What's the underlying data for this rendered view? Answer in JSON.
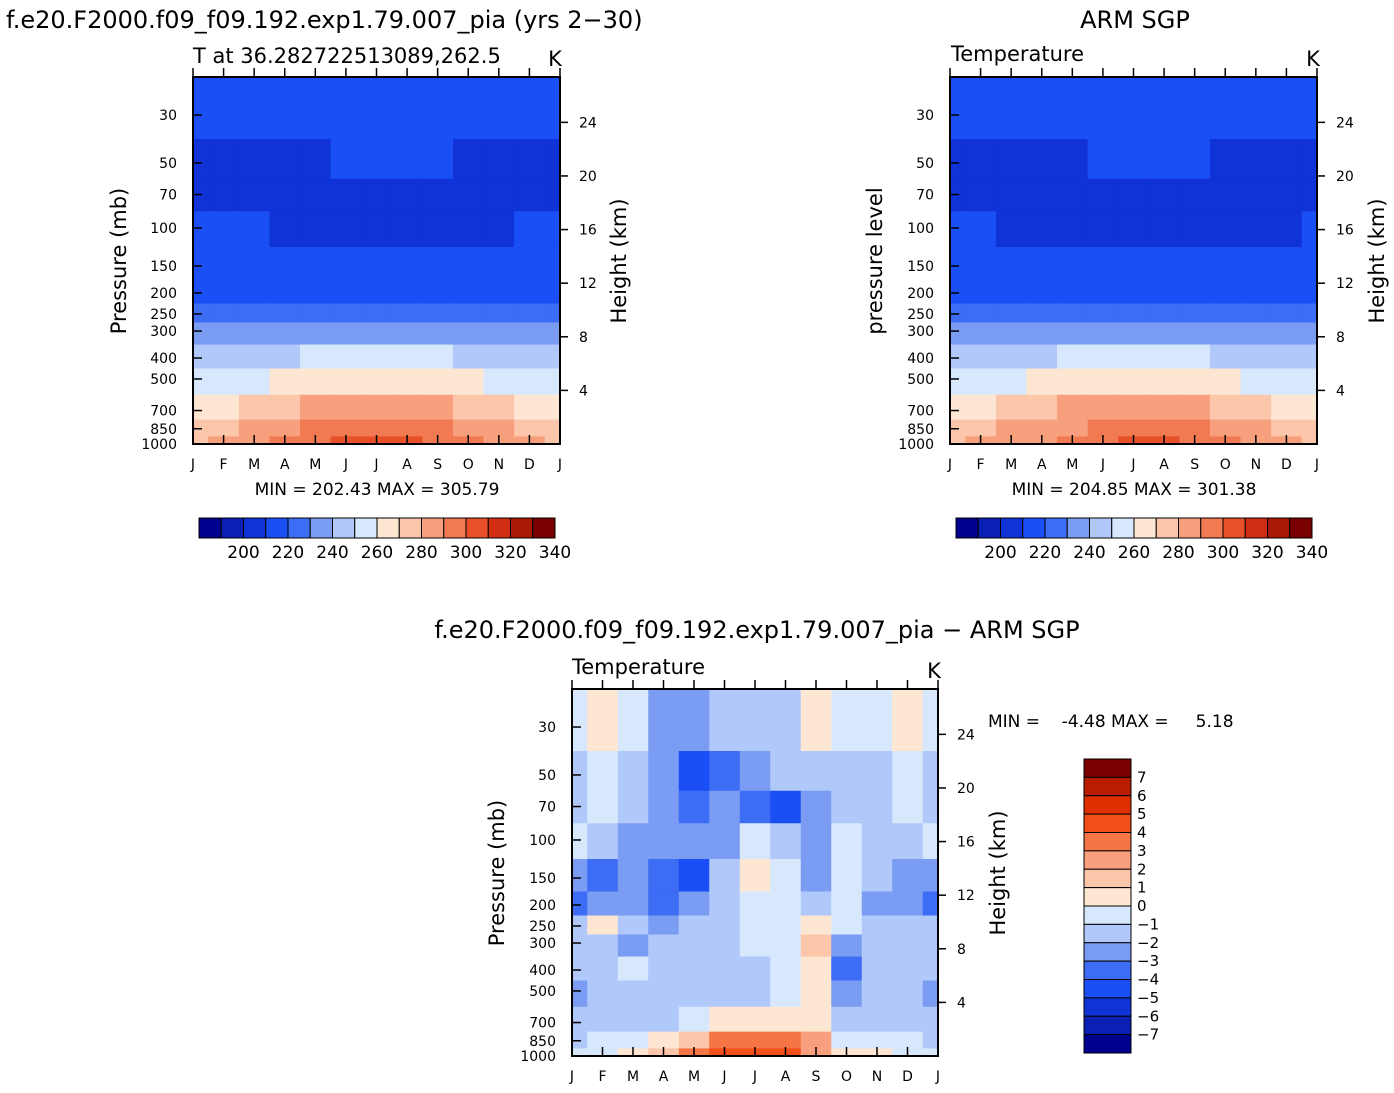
{
  "header": {
    "left_title": "f.e20.F2000.f09_f09.192.exp1.79.007_pia (yrs 2−30)",
    "right_title": "ARM SGP",
    "diff_title": "f.e20.F2000.f09_f09.192.exp1.79.007_pia − ARM SGP"
  },
  "panels": {
    "model": {
      "subtitle": "T at 36.282722513089,262.5",
      "units": "K",
      "ylabel": "Pressure (mb)",
      "y2label": "Height (km)",
      "stats": "MIN = 202.43 MAX = 305.79"
    },
    "obs": {
      "subtitle": "Temperature",
      "units": "K",
      "ylabel": "pressure level",
      "y2label": "Height (km)",
      "stats": "MIN = 204.85 MAX = 301.38"
    },
    "diff": {
      "subtitle": "Temperature",
      "units": "K",
      "ylabel": "Pressure (mb)",
      "y2label": "Height (km)",
      "stats": "MIN =    -4.48 MAX =     5.18"
    }
  },
  "chart_data": [
    {
      "type": "heatmap",
      "title": "T at 36.282722513089,262.5",
      "units": "K",
      "x": [
        "J",
        "F",
        "M",
        "A",
        "M",
        "J",
        "J",
        "A",
        "S",
        "O",
        "N",
        "D",
        "J"
      ],
      "y_pressure_mb": [
        30,
        50,
        70,
        100,
        150,
        200,
        250,
        300,
        400,
        500,
        700,
        850,
        1000
      ],
      "y2_height_km": [
        24,
        20,
        16,
        12,
        8,
        4
      ],
      "approx_temperature_k": [
        [
          213,
          213,
          213,
          214,
          215,
          217,
          219,
          219,
          218,
          216,
          214,
          213,
          213
        ],
        [
          208,
          208,
          208,
          208,
          209,
          211,
          212,
          212,
          211,
          209,
          208,
          208,
          208
        ],
        [
          207,
          207,
          207,
          207,
          205,
          206,
          206,
          206,
          206,
          206,
          207,
          207,
          207
        ],
        [
          212,
          211,
          210,
          208,
          205,
          205,
          205,
          205,
          205,
          205,
          207,
          210,
          212
        ],
        [
          215,
          214,
          213,
          212,
          210,
          210,
          210,
          210,
          210,
          210,
          211,
          213,
          215
        ],
        [
          219,
          218,
          217,
          216,
          215,
          215,
          215,
          215,
          215,
          215,
          216,
          217,
          219
        ],
        [
          224,
          223,
          223,
          222,
          222,
          222,
          222,
          222,
          222,
          222,
          223,
          223,
          224
        ],
        [
          230,
          230,
          231,
          232,
          234,
          235,
          236,
          236,
          235,
          233,
          231,
          230,
          230
        ],
        [
          242,
          243,
          245,
          247,
          250,
          252,
          254,
          254,
          252,
          249,
          246,
          243,
          242
        ],
        [
          254,
          255,
          257,
          260,
          263,
          266,
          268,
          268,
          265,
          262,
          258,
          255,
          254
        ],
        [
          268,
          269,
          272,
          276,
          280,
          284,
          286,
          286,
          283,
          278,
          273,
          269,
          268
        ],
        [
          276,
          277,
          280,
          285,
          290,
          295,
          298,
          297,
          293,
          287,
          281,
          277,
          276
        ],
        [
          279,
          281,
          285,
          290,
          296,
          301,
          305,
          304,
          299,
          292,
          285,
          280,
          279
        ]
      ],
      "colorbar_ticks": [
        "200",
        "220",
        "240",
        "260",
        "280",
        "300",
        "320",
        "340"
      ],
      "colorbar_colors": [
        "#00008f",
        "#0a1fb3",
        "#0f33d6",
        "#1a4ff5",
        "#3d6cf5",
        "#7a9cf2",
        "#b0c8fa",
        "#d8e8fc",
        "#fde6d2",
        "#fbc6a9",
        "#f8a07e",
        "#f27a52",
        "#e8502a",
        "#cf2e12",
        "#a81a05",
        "#7a0000"
      ],
      "stats": {
        "min": 202.43,
        "max": 305.79
      }
    },
    {
      "type": "heatmap",
      "title": "Temperature",
      "units": "K",
      "x": [
        "J",
        "F",
        "M",
        "A",
        "M",
        "J",
        "J",
        "A",
        "S",
        "O",
        "N",
        "D",
        "J"
      ],
      "y_pressure_mb": [
        30,
        50,
        70,
        100,
        150,
        200,
        250,
        300,
        400,
        500,
        700,
        850,
        1000
      ],
      "y2_height_km": [
        24,
        20,
        16,
        12,
        8,
        4
      ],
      "approx_temperature_k": [
        [
          213,
          213,
          213,
          214,
          215,
          217,
          219,
          219,
          218,
          216,
          214,
          213,
          213
        ],
        [
          208,
          208,
          208,
          208,
          209,
          211,
          212,
          212,
          211,
          209,
          208,
          208,
          208
        ],
        [
          208,
          207,
          205,
          206,
          206,
          206,
          206,
          206,
          206,
          206,
          206,
          207,
          208
        ],
        [
          212,
          211,
          209,
          207,
          206,
          205,
          205,
          205,
          205,
          206,
          207,
          209,
          212
        ],
        [
          215,
          214,
          213,
          212,
          211,
          210,
          210,
          210,
          210,
          211,
          212,
          213,
          215
        ],
        [
          219,
          218,
          217,
          216,
          215,
          215,
          215,
          215,
          215,
          215,
          216,
          217,
          219
        ],
        [
          224,
          223,
          223,
          222,
          222,
          222,
          222,
          222,
          222,
          222,
          223,
          223,
          224
        ],
        [
          230,
          230,
          231,
          232,
          234,
          235,
          236,
          236,
          235,
          233,
          231,
          230,
          230
        ],
        [
          242,
          243,
          245,
          247,
          250,
          252,
          254,
          254,
          252,
          249,
          246,
          243,
          242
        ],
        [
          254,
          255,
          257,
          260,
          263,
          266,
          268,
          268,
          265,
          262,
          258,
          255,
          254
        ],
        [
          268,
          269,
          272,
          276,
          280,
          283,
          285,
          285,
          283,
          278,
          273,
          269,
          268
        ],
        [
          276,
          277,
          280,
          285,
          289,
          293,
          295,
          295,
          292,
          287,
          281,
          277,
          276
        ],
        [
          279,
          281,
          284,
          289,
          294,
          298,
          301,
          300,
          297,
          291,
          285,
          280,
          279
        ]
      ],
      "colorbar_ticks": [
        "200",
        "220",
        "240",
        "260",
        "280",
        "300",
        "320",
        "340"
      ],
      "colorbar_colors": [
        "#00008f",
        "#0a1fb3",
        "#0f33d6",
        "#1a4ff5",
        "#3d6cf5",
        "#7a9cf2",
        "#b0c8fa",
        "#d8e8fc",
        "#fde6d2",
        "#fbc6a9",
        "#f8a07e",
        "#f27a52",
        "#e8502a",
        "#cf2e12",
        "#a81a05",
        "#7a0000"
      ],
      "stats": {
        "min": 204.85,
        "max": 301.38
      }
    },
    {
      "type": "heatmap",
      "title": "Temperature",
      "units": "K",
      "x": [
        "J",
        "F",
        "M",
        "A",
        "M",
        "J",
        "J",
        "A",
        "S",
        "O",
        "N",
        "D",
        "J"
      ],
      "y_pressure_mb": [
        30,
        50,
        70,
        100,
        150,
        200,
        250,
        300,
        400,
        500,
        700,
        850,
        1000
      ],
      "y2_height_km": [
        24,
        20,
        16,
        12,
        8,
        4
      ],
      "approx_difference_k": [
        [
          -0.5,
          0.5,
          -0.5,
          -2.5,
          -2.5,
          -1.5,
          -1.5,
          -1.5,
          0.5,
          -0.5,
          -0.5,
          0.5,
          -0.5
        ],
        [
          -1.5,
          -0.5,
          -1.5,
          -2.5,
          -4.5,
          -3.5,
          -2.5,
          -1.5,
          -1.5,
          -1.5,
          -1.5,
          -0.5,
          -1.5
        ],
        [
          -1.5,
          -0.5,
          -1.5,
          -2.5,
          -3.5,
          -2.5,
          -3.5,
          -4.5,
          -2.5,
          -1.5,
          -1.5,
          -0.5,
          -1.5
        ],
        [
          -0.5,
          -1.5,
          -2.5,
          -2.5,
          -2.5,
          -2.5,
          -0.5,
          -1.5,
          -2.5,
          -0.5,
          -1.5,
          -1.5,
          -0.5
        ],
        [
          -2.5,
          -3.5,
          -2.5,
          -3.5,
          -4.5,
          -1.5,
          0.5,
          -0.5,
          -2.5,
          -0.5,
          -1.5,
          -2.5,
          -2.5
        ],
        [
          -3.5,
          -2.5,
          -2.5,
          -3.5,
          -2.5,
          -1.5,
          -0.5,
          -0.5,
          -1.5,
          -0.5,
          -2.5,
          -2.5,
          -3.5
        ],
        [
          -1.5,
          0.5,
          -1.5,
          -2.5,
          -1.5,
          -1.5,
          -0.5,
          -0.5,
          0.5,
          -0.5,
          -1.5,
          -1.5,
          -1.5
        ],
        [
          -1.5,
          -1.5,
          -2.5,
          -1.5,
          -1.5,
          -1.5,
          -0.5,
          -0.5,
          1.5,
          -2.5,
          -1.5,
          -1.5,
          -1.5
        ],
        [
          -1.5,
          -1.5,
          -0.5,
          -1.5,
          -1.5,
          -1.5,
          -1.5,
          -0.5,
          0.5,
          -3.5,
          -1.5,
          -1.5,
          -1.5
        ],
        [
          -2.5,
          -1.5,
          -1.5,
          -1.5,
          -1.5,
          -1.5,
          -1.5,
          -0.5,
          0.5,
          -2.5,
          -1.5,
          -1.5,
          -2.5
        ],
        [
          -1.5,
          -1.5,
          -1.5,
          -1.5,
          -0.5,
          0.5,
          0.5,
          0.5,
          0.5,
          -1.5,
          -1.5,
          -1.5,
          -1.5
        ],
        [
          -1.5,
          -0.5,
          -0.5,
          0.5,
          1.5,
          3.5,
          3.5,
          3.5,
          2.5,
          -0.5,
          -0.5,
          -0.5,
          -1.5
        ],
        [
          -0.5,
          -0.5,
          0.5,
          1.5,
          3.5,
          5.0,
          5.0,
          4.5,
          3.0,
          0.5,
          0.5,
          -0.5,
          -0.5
        ]
      ],
      "colorbar_ticks": [
        "7",
        "6",
        "5",
        "4",
        "3",
        "2",
        "1",
        "0",
        "−1",
        "−2",
        "−3",
        "−4",
        "−5",
        "−6",
        "−7"
      ],
      "colorbar_colors": [
        "#7a0000",
        "#b81d00",
        "#e03000",
        "#f2501a",
        "#f57545",
        "#f8a07e",
        "#fbc6a9",
        "#fde6d2",
        "#d8e8fc",
        "#b0c8fa",
        "#7a9cf2",
        "#3d6cf5",
        "#1a4ff5",
        "#0f33d6",
        "#0a1fb3",
        "#00008f"
      ],
      "stats": {
        "min": -4.48,
        "max": 5.18
      }
    }
  ]
}
